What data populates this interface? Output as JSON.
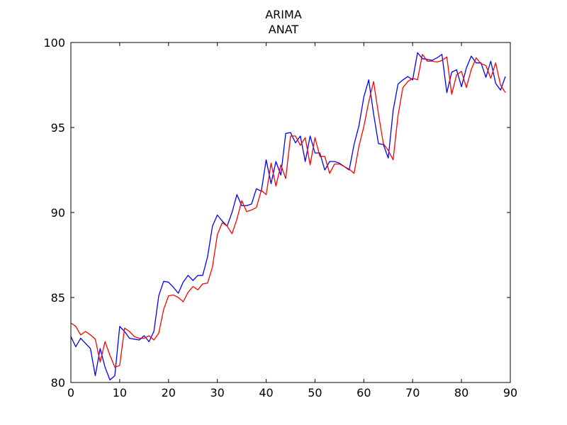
{
  "chart_data": {
    "type": "line",
    "title": "ARIMA",
    "subtitle": "ANAT",
    "xlabel": "",
    "ylabel": "",
    "xlim": [
      0,
      90
    ],
    "ylim": [
      80,
      100
    ],
    "xticks": [
      0,
      10,
      20,
      30,
      40,
      50,
      60,
      70,
      80,
      90
    ],
    "yticks": [
      80,
      85,
      90,
      95,
      100
    ],
    "xtick_labels": [
      "0",
      "10",
      "20",
      "30",
      "40",
      "50",
      "60",
      "70",
      "80",
      "90"
    ],
    "ytick_labels": [
      "80",
      "85",
      "90",
      "95",
      "100"
    ],
    "grid": false,
    "legend": "none",
    "x": [
      0,
      1,
      2,
      3,
      4,
      5,
      6,
      7,
      8,
      9,
      10,
      11,
      12,
      13,
      14,
      15,
      16,
      17,
      18,
      19,
      20,
      21,
      22,
      23,
      24,
      25,
      26,
      27,
      28,
      29,
      30,
      31,
      32,
      33,
      34,
      35,
      36,
      37,
      38,
      39,
      40,
      41,
      42,
      43,
      44,
      45,
      46,
      47,
      48,
      49,
      50,
      51,
      52,
      53,
      54,
      55,
      56,
      57,
      58,
      59,
      60,
      61,
      62,
      63,
      64,
      65,
      66,
      67,
      68,
      69,
      70,
      71,
      72,
      73,
      74,
      75,
      76,
      77,
      78,
      79,
      80,
      81,
      82,
      83,
      84,
      85,
      86,
      87,
      88,
      89
    ],
    "series": [
      {
        "color": "#0000ff",
        "values": [
          82.7,
          82.1,
          82.6,
          82.3,
          82.0,
          80.4,
          82.0,
          80.9,
          80.15,
          80.4,
          83.3,
          83.0,
          82.6,
          82.55,
          82.5,
          82.75,
          82.4,
          83.0,
          85.1,
          85.95,
          85.9,
          85.6,
          85.25,
          85.9,
          86.3,
          86.0,
          86.3,
          86.3,
          87.4,
          89.2,
          89.85,
          89.5,
          89.2,
          90.0,
          91.05,
          90.4,
          90.4,
          90.5,
          91.4,
          91.25,
          93.1,
          91.7,
          93.0,
          92.2,
          94.65,
          94.7,
          94.1,
          94.5,
          93.0,
          94.5,
          93.5,
          93.5,
          92.5,
          93.0,
          93.0,
          92.9,
          92.7,
          92.5,
          94.0,
          95.1,
          96.8,
          97.8,
          95.8,
          94.05,
          94.0,
          93.2,
          96.0,
          97.55,
          97.8,
          98.0,
          97.8,
          99.4,
          99.05,
          99.0,
          98.95,
          99.1,
          99.3,
          97.05,
          98.25,
          98.4,
          97.4,
          98.5,
          99.2,
          98.8,
          98.8,
          97.95,
          98.9,
          97.6,
          97.2,
          98.0
        ]
      },
      {
        "color": "#ff0000",
        "values": [
          83.5,
          83.3,
          82.8,
          83.0,
          82.8,
          82.55,
          81.2,
          82.4,
          81.6,
          80.9,
          81.0,
          83.2,
          83.0,
          82.7,
          82.6,
          82.6,
          82.75,
          82.5,
          82.9,
          84.3,
          85.1,
          85.15,
          85.0,
          84.75,
          85.3,
          85.65,
          85.45,
          85.8,
          85.85,
          86.8,
          88.7,
          89.4,
          89.2,
          88.75,
          89.6,
          90.7,
          90.05,
          90.15,
          90.3,
          91.3,
          91.05,
          92.9,
          91.55,
          92.8,
          92.0,
          94.5,
          94.5,
          93.95,
          94.4,
          92.8,
          94.4,
          93.3,
          93.3,
          92.3,
          92.85,
          92.85,
          92.7,
          92.55,
          92.3,
          93.9,
          95.05,
          96.5,
          97.7,
          95.8,
          94.05,
          93.65,
          93.1,
          95.7,
          97.35,
          97.7,
          97.9,
          97.8,
          99.3,
          98.9,
          98.9,
          98.85,
          98.95,
          99.15,
          96.95,
          98.1,
          98.3,
          97.35,
          98.4,
          99.1,
          98.75,
          98.65,
          97.9,
          98.8,
          97.5,
          97.05
        ]
      }
    ]
  }
}
